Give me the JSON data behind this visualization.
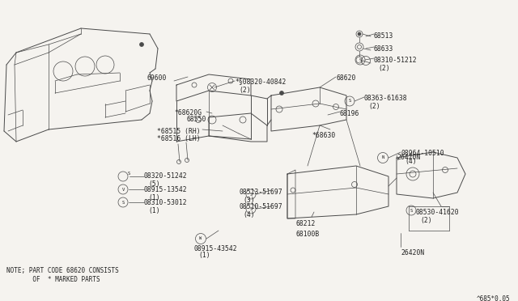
{
  "bg_color": "#f5f3ef",
  "line_color": "#4a4a4a",
  "text_color": "#222222",
  "note_line1": "NOTE; PART CODE 68620 CONSISTS",
  "note_line2": "       OF  * MARKED PARTS",
  "watermark": "^685*0.05",
  "fig_w": 6.4,
  "fig_h": 3.72,
  "dpi": 100,
  "lw_main": 0.7,
  "lw_thin": 0.5,
  "fs_label": 5.8,
  "fs_note": 5.5
}
